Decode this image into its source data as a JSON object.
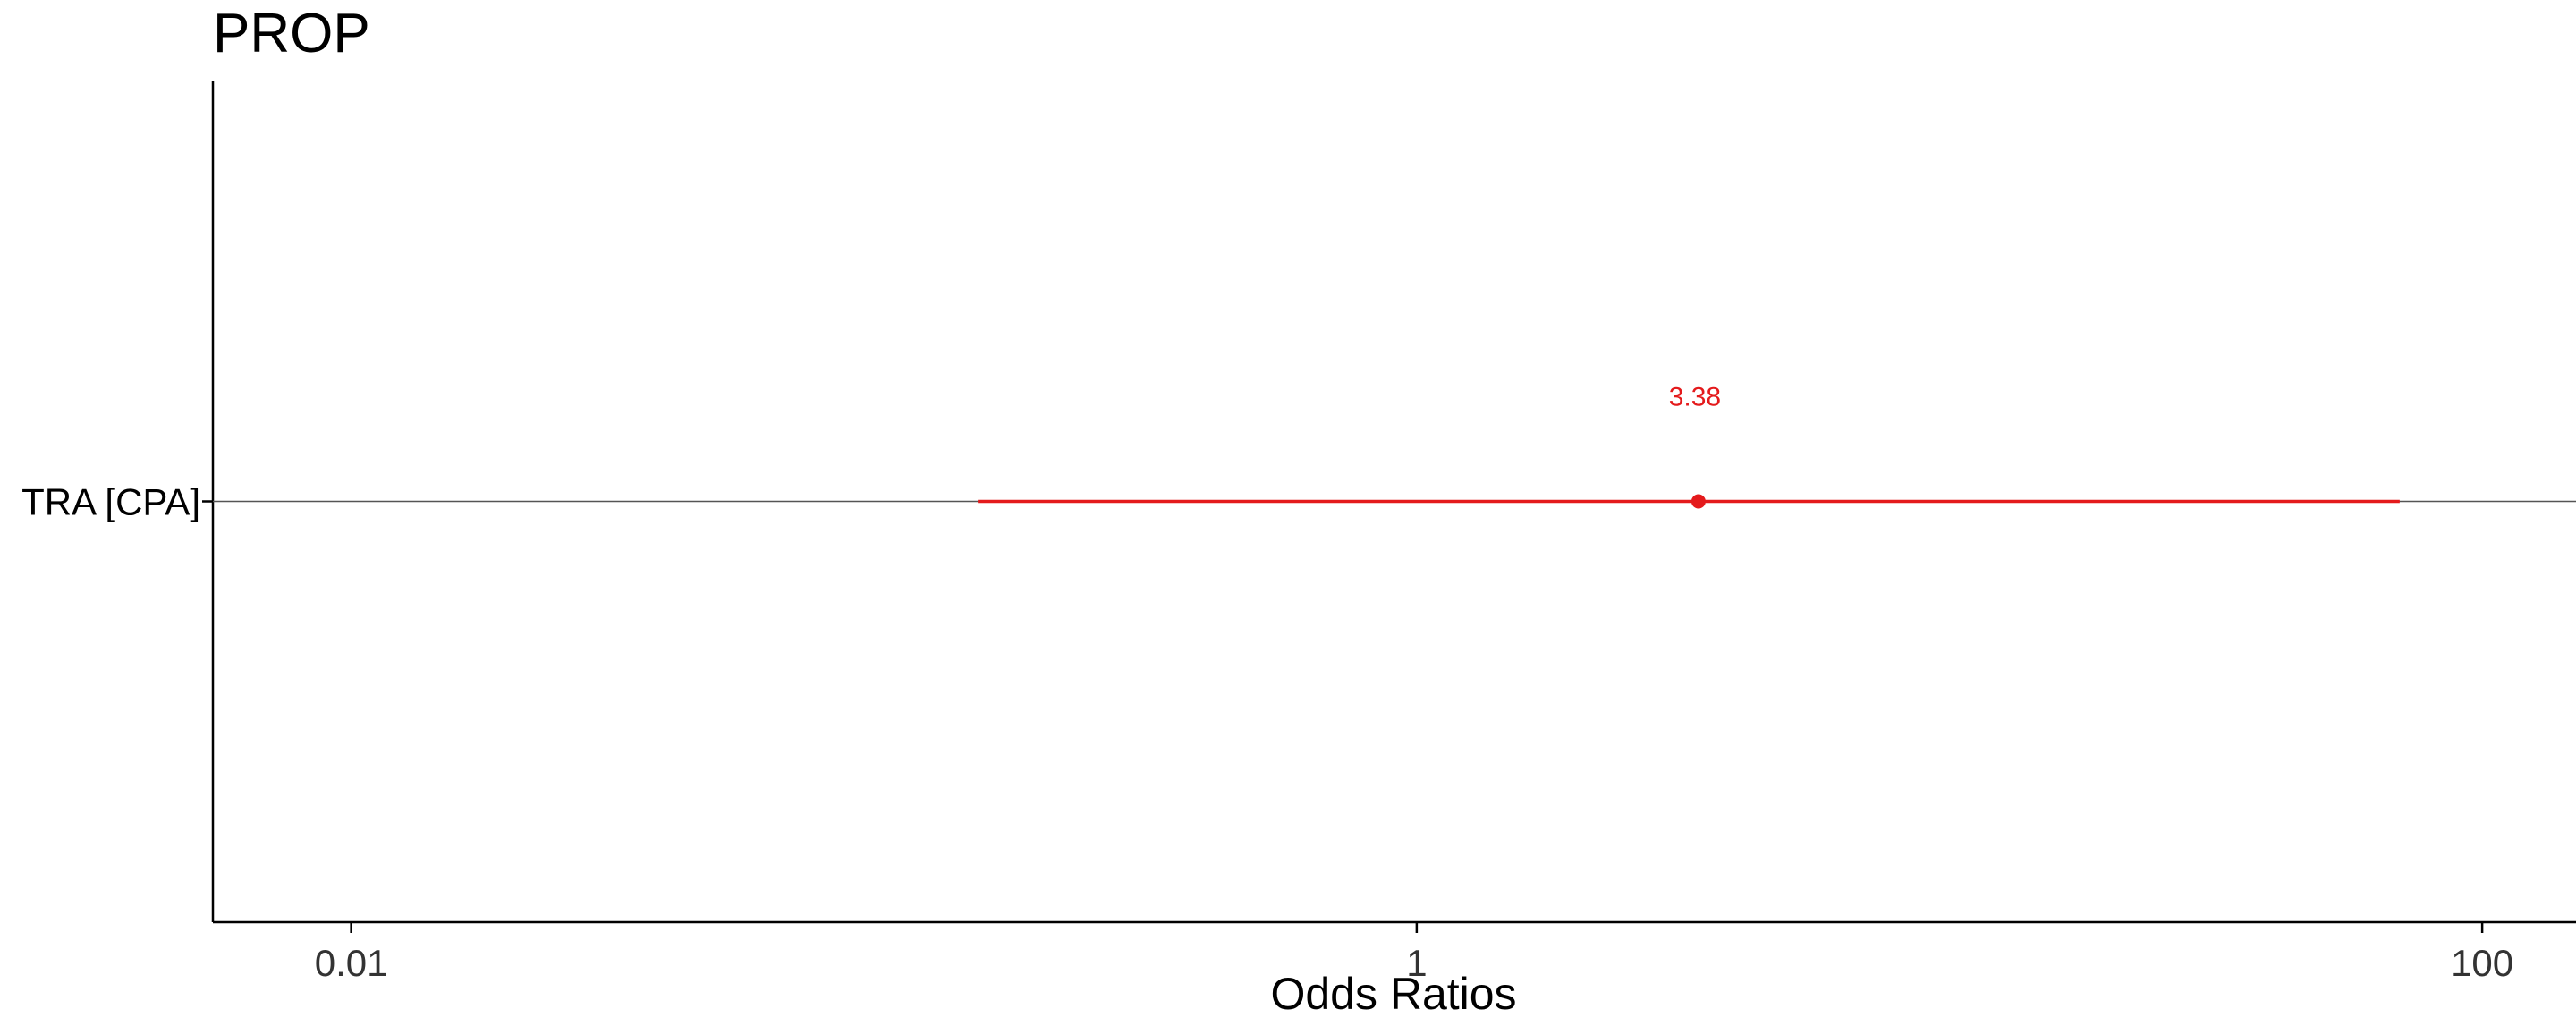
{
  "chart_data": {
    "type": "scatter",
    "title": "PROP",
    "xlabel": "Odds Ratios",
    "ylabel": "",
    "x_scale": "log10",
    "xlim": [
      0.0055,
      150
    ],
    "x_ticks": [
      {
        "value": 0.01,
        "label": "0.01"
      },
      {
        "value": 1,
        "label": "1"
      },
      {
        "value": 100,
        "label": "100"
      }
    ],
    "categories": [
      "TRA [CPA]"
    ],
    "reference_line": 1,
    "grid": false,
    "points": [
      {
        "term": "TRA [CPA]",
        "estimate": 3.38,
        "conf_low": 0.15,
        "conf_high": 70,
        "label": "3.38",
        "color": "#e41a1c"
      }
    ]
  }
}
